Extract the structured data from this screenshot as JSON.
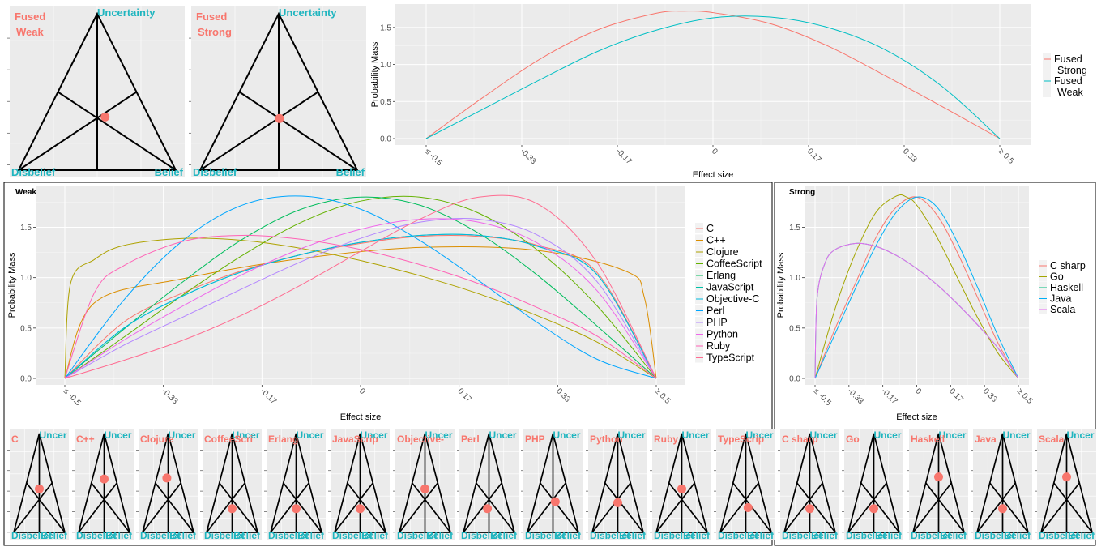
{
  "top_triangles": [
    {
      "label_line1": "Fused",
      "label_line2": "Weak",
      "uncertainty": "Uncertainty",
      "disbelief": "Disbelief",
      "belief": "Belief",
      "opinion": {
        "belief": 0.38,
        "disbelief": 0.28,
        "uncertainty": 0.34
      }
    },
    {
      "label_line1": "Fused",
      "label_line2": "Strong",
      "uncertainty": "Uncertainty",
      "disbelief": "Disbelief",
      "belief": "Belief",
      "opinion": {
        "belief": 0.34,
        "disbelief": 0.33,
        "uncertainty": 0.33
      }
    }
  ],
  "small_triangles": {
    "uncertainty": "Uncer",
    "disbelief": "Disbelief",
    "belief": "Belief",
    "items": [
      {
        "label": "C",
        "opinion": {
          "belief": 0.28,
          "disbelief": 0.28,
          "uncertainty": 0.44
        }
      },
      {
        "label": "C++",
        "opinion": {
          "belief": 0.23,
          "disbelief": 0.23,
          "uncertainty": 0.54
        }
      },
      {
        "label": "Clojure",
        "opinion": {
          "belief": 0.2,
          "disbelief": 0.25,
          "uncertainty": 0.55
        }
      },
      {
        "label": "CoffeeScri",
        "opinion": {
          "belief": 0.38,
          "disbelief": 0.38,
          "uncertainty": 0.24
        }
      },
      {
        "label": "Erlang",
        "opinion": {
          "belief": 0.38,
          "disbelief": 0.38,
          "uncertainty": 0.24
        }
      },
      {
        "label": "JavaScrip",
        "opinion": {
          "belief": 0.38,
          "disbelief": 0.38,
          "uncertainty": 0.24
        }
      },
      {
        "label": "Objective-",
        "opinion": {
          "belief": 0.28,
          "disbelief": 0.28,
          "uncertainty": 0.44
        }
      },
      {
        "label": "Perl",
        "opinion": {
          "belief": 0.35,
          "disbelief": 0.41,
          "uncertainty": 0.24
        }
      },
      {
        "label": "PHP",
        "opinion": {
          "belief": 0.39,
          "disbelief": 0.3,
          "uncertainty": 0.31
        }
      },
      {
        "label": "Python",
        "opinion": {
          "belief": 0.35,
          "disbelief": 0.35,
          "uncertainty": 0.3
        }
      },
      {
        "label": "Ruby",
        "opinion": {
          "belief": 0.28,
          "disbelief": 0.28,
          "uncertainty": 0.44
        }
      },
      {
        "label": "TypeScrip",
        "opinion": {
          "belief": 0.42,
          "disbelief": 0.33,
          "uncertainty": 0.25
        }
      },
      {
        "label": "C sharp",
        "opinion": {
          "belief": 0.38,
          "disbelief": 0.38,
          "uncertainty": 0.24
        }
      },
      {
        "label": "Go",
        "opinion": {
          "belief": 0.38,
          "disbelief": 0.38,
          "uncertainty": 0.24
        }
      },
      {
        "label": "Haskell",
        "opinion": {
          "belief": 0.22,
          "disbelief": 0.22,
          "uncertainty": 0.56
        }
      },
      {
        "label": "Java",
        "opinion": {
          "belief": 0.38,
          "disbelief": 0.38,
          "uncertainty": 0.24
        }
      },
      {
        "label": "Scala",
        "opinion": {
          "belief": 0.22,
          "disbelief": 0.22,
          "uncertainty": 0.56
        }
      }
    ]
  },
  "chart_data": [
    {
      "type": "line",
      "title": "",
      "xlabel": "Effect size",
      "ylabel": "Probability Mass",
      "x_ticks": [
        "≤ -0.5",
        "-0.33",
        "-0.17",
        "0",
        "0.17",
        "0.33",
        "≥ 0.5"
      ],
      "y_ticks": [
        "0.0",
        "0.5",
        "1.0",
        "1.5"
      ],
      "xlim": [
        -0.5,
        0.5
      ],
      "ylim": [
        0,
        1.75
      ],
      "grid": true,
      "legend": "right",
      "series": [
        {
          "name": "Fused Strong",
          "color": "#F8766D",
          "x": [
            -0.5,
            -0.4,
            -0.3,
            -0.2,
            -0.1,
            -0.05,
            0,
            0.1,
            0.2,
            0.3,
            0.4,
            0.5
          ],
          "y": [
            0,
            0.56,
            1.08,
            1.47,
            1.69,
            1.72,
            1.7,
            1.55,
            1.25,
            0.85,
            0.43,
            0
          ]
        },
        {
          "name": "Fused Weak",
          "color": "#00BFC4",
          "x": [
            -0.5,
            -0.4,
            -0.3,
            -0.2,
            -0.1,
            0,
            0.1,
            0.2,
            0.3,
            0.4,
            0.5
          ],
          "y": [
            0,
            0.4,
            0.8,
            1.18,
            1.46,
            1.63,
            1.64,
            1.5,
            1.2,
            0.7,
            0
          ]
        }
      ]
    },
    {
      "type": "line",
      "title": "Weak",
      "xlabel": "Effect size",
      "ylabel": "Probability Mass",
      "x_ticks": [
        "≤ -0.5",
        "-0.33",
        "-0.17",
        "0",
        "0.17",
        "0.33",
        "≥ 0.5"
      ],
      "y_ticks": [
        "0.0",
        "0.5",
        "1.0",
        "1.5"
      ],
      "xlim": [
        -0.5,
        0.5
      ],
      "ylim": [
        0,
        1.85
      ],
      "grid": true,
      "legend": "right",
      "series": [
        {
          "name": "C",
          "color": "#F8766D",
          "x": [
            -0.5,
            -0.4,
            -0.3,
            -0.2,
            -0.1,
            0,
            0.1,
            0.2,
            0.3,
            0.4,
            0.5
          ],
          "y": [
            0,
            0.56,
            0.85,
            1.07,
            1.23,
            1.34,
            1.41,
            1.41,
            1.32,
            1.05,
            0
          ]
        },
        {
          "name": "C++",
          "color": "#DB8E00",
          "x": [
            -0.5,
            -0.45,
            -0.3,
            -0.1,
            0.1,
            0.3,
            0.45,
            0.48,
            0.5
          ],
          "y": [
            0,
            0.75,
            0.99,
            1.19,
            1.3,
            1.27,
            1.06,
            0.8,
            0
          ]
        },
        {
          "name": "Clojure",
          "color": "#AEA200",
          "x": [
            -0.5,
            -0.49,
            -0.45,
            -0.4,
            -0.3,
            -0.2,
            -0.1,
            0,
            0.1,
            0.2,
            0.3,
            0.4,
            0.5
          ],
          "y": [
            0,
            0.95,
            1.18,
            1.32,
            1.39,
            1.37,
            1.29,
            1.17,
            1.02,
            0.84,
            0.62,
            0.36,
            0
          ]
        },
        {
          "name": "CoffeeScript",
          "color": "#64B200",
          "x": [
            -0.5,
            -0.4,
            -0.3,
            -0.2,
            -0.1,
            0,
            0.1,
            0.2,
            0.3,
            0.4,
            0.5
          ],
          "y": [
            0,
            0.41,
            0.83,
            1.22,
            1.55,
            1.76,
            1.8,
            1.64,
            1.27,
            0.72,
            0
          ]
        },
        {
          "name": "Erlang",
          "color": "#00BD5C",
          "x": [
            -0.5,
            -0.4,
            -0.3,
            -0.2,
            -0.1,
            0,
            0.1,
            0.2,
            0.3,
            0.4,
            0.5
          ],
          "y": [
            0,
            0.49,
            0.96,
            1.38,
            1.68,
            1.8,
            1.72,
            1.44,
            1.02,
            0.52,
            0
          ]
        },
        {
          "name": "JavaScript",
          "color": "#00C1A7",
          "x": [
            -0.5,
            -0.4,
            -0.3,
            -0.2,
            -0.1,
            0,
            0.1,
            0.2,
            0.3,
            0.4,
            0.5
          ],
          "y": [
            0,
            0.5,
            0.82,
            1.06,
            1.23,
            1.35,
            1.42,
            1.42,
            1.31,
            1.03,
            0
          ]
        },
        {
          "name": "Objective-C",
          "color": "#00BADE",
          "x": [
            -0.5,
            -0.4,
            -0.3,
            -0.2,
            -0.1,
            0,
            0.1,
            0.2,
            0.3,
            0.4,
            0.5
          ],
          "y": [
            0,
            0.5,
            0.82,
            1.06,
            1.23,
            1.35,
            1.42,
            1.42,
            1.31,
            1.03,
            0
          ]
        },
        {
          "name": "Perl",
          "color": "#00A6FF",
          "x": [
            -0.5,
            -0.4,
            -0.3,
            -0.2,
            -0.1,
            0,
            0.1,
            0.2,
            0.3,
            0.4,
            0.5
          ],
          "y": [
            0,
            0.78,
            1.37,
            1.72,
            1.81,
            1.68,
            1.37,
            0.97,
            0.55,
            0.19,
            0
          ]
        },
        {
          "name": "PHP",
          "color": "#B385FF",
          "x": [
            -0.5,
            -0.4,
            -0.3,
            -0.2,
            -0.1,
            0,
            0.1,
            0.2,
            0.3,
            0.4,
            0.5
          ],
          "y": [
            0,
            0.33,
            0.61,
            0.89,
            1.16,
            1.39,
            1.55,
            1.58,
            1.42,
            0.96,
            0
          ]
        },
        {
          "name": "Python",
          "color": "#EF67EB",
          "x": [
            -0.5,
            -0.4,
            -0.3,
            -0.2,
            -0.1,
            0,
            0.1,
            0.2,
            0.3,
            0.4,
            0.5
          ],
          "y": [
            0,
            0.38,
            0.72,
            1.03,
            1.29,
            1.48,
            1.58,
            1.55,
            1.34,
            0.87,
            0
          ]
        },
        {
          "name": "Ruby",
          "color": "#FF63B6",
          "x": [
            -0.5,
            -0.45,
            -0.4,
            -0.3,
            -0.2,
            -0.1,
            0,
            0.1,
            0.2,
            0.3,
            0.4,
            0.5
          ],
          "y": [
            0,
            0.85,
            1.12,
            1.36,
            1.42,
            1.38,
            1.28,
            1.13,
            0.94,
            0.7,
            0.42,
            0
          ]
        },
        {
          "name": "TypeScript",
          "color": "#FF6C91",
          "x": [
            -0.5,
            -0.4,
            -0.3,
            -0.2,
            -0.1,
            0,
            0.1,
            0.2,
            0.3,
            0.4,
            0.5
          ],
          "y": [
            0,
            0.18,
            0.38,
            0.63,
            0.93,
            1.26,
            1.58,
            1.8,
            1.73,
            1.15,
            0
          ]
        }
      ]
    },
    {
      "type": "line",
      "title": "Strong",
      "xlabel": "Effect size",
      "ylabel": "Probability Mass",
      "x_ticks": [
        "≤ -0.5",
        "-0.33",
        "-0.17",
        "0",
        "0.17",
        "0.33",
        "≥ 0.5"
      ],
      "y_ticks": [
        "0.0",
        "0.5",
        "1.0",
        "1.5"
      ],
      "xlim": [
        -0.5,
        0.5
      ],
      "ylim": [
        0,
        1.85
      ],
      "grid": true,
      "legend": "right",
      "series": [
        {
          "name": "C sharp",
          "color": "#F8766D",
          "x": [
            -0.5,
            -0.4,
            -0.3,
            -0.2,
            -0.1,
            0,
            0.1,
            0.2,
            0.3,
            0.4,
            0.5
          ],
          "y": [
            0,
            0.5,
            0.95,
            1.4,
            1.7,
            1.8,
            1.62,
            1.25,
            0.8,
            0.35,
            0
          ]
        },
        {
          "name": "Go",
          "color": "#A3A500",
          "x": [
            -0.5,
            -0.4,
            -0.3,
            -0.2,
            -0.1,
            -0.05,
            0,
            0.1,
            0.2,
            0.3,
            0.4,
            0.5
          ],
          "y": [
            0,
            0.7,
            1.25,
            1.65,
            1.81,
            1.8,
            1.72,
            1.4,
            1.0,
            0.6,
            0.25,
            0
          ]
        },
        {
          "name": "Haskell",
          "color": "#00BF7D",
          "x": [
            -0.5,
            -0.49,
            -0.45,
            -0.4,
            -0.3,
            -0.2,
            -0.1,
            0,
            0.1,
            0.2,
            0.3,
            0.4,
            0.5
          ],
          "y": [
            0,
            0.8,
            1.15,
            1.28,
            1.34,
            1.31,
            1.22,
            1.09,
            0.93,
            0.74,
            0.53,
            0.3,
            0
          ]
        },
        {
          "name": "Java",
          "color": "#00B0F6",
          "x": [
            -0.5,
            -0.4,
            -0.3,
            -0.2,
            -0.1,
            0,
            0.1,
            0.2,
            0.3,
            0.4,
            0.5
          ],
          "y": [
            0,
            0.45,
            0.9,
            1.32,
            1.65,
            1.8,
            1.7,
            1.35,
            0.9,
            0.42,
            0
          ]
        },
        {
          "name": "Scala",
          "color": "#E76BF3",
          "x": [
            -0.5,
            -0.49,
            -0.45,
            -0.4,
            -0.3,
            -0.2,
            -0.1,
            0,
            0.1,
            0.2,
            0.3,
            0.4,
            0.5
          ],
          "y": [
            0,
            0.8,
            1.15,
            1.28,
            1.34,
            1.31,
            1.22,
            1.09,
            0.93,
            0.74,
            0.53,
            0.3,
            0
          ]
        }
      ]
    }
  ]
}
